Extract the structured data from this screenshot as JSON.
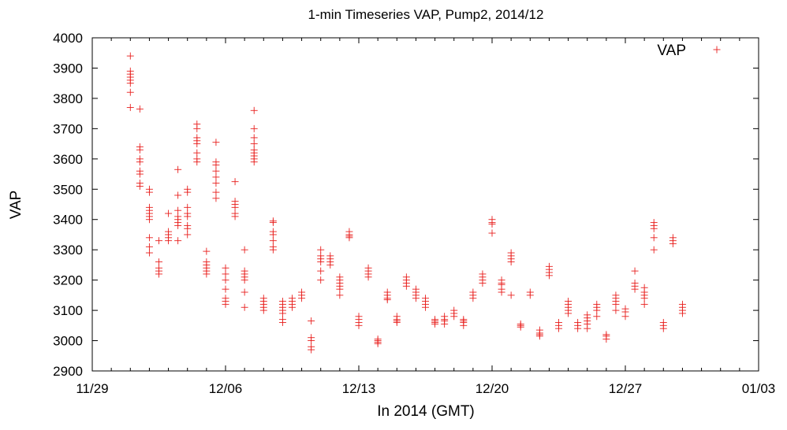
{
  "chart_data": {
    "type": "scatter",
    "title": "1-min Timeseries VAP, Pump2, 2014/12",
    "xlabel": "In 2014 (GMT)",
    "ylabel": "VAP",
    "x_tick_labels": [
      "11/29",
      "12/06",
      "12/13",
      "12/20",
      "12/27",
      "01/03"
    ],
    "y_ticks": [
      2900,
      3000,
      3100,
      3200,
      3300,
      3400,
      3500,
      3600,
      3700,
      3800,
      3900,
      4000
    ],
    "ylim": [
      2900,
      4000
    ],
    "xlim": [
      "2014-11-29",
      "2015-01-03"
    ],
    "grid": false,
    "legend_position": "top-right",
    "marker": "+",
    "color": "#e8201e",
    "series": [
      {
        "name": "VAP",
        "groups": [
          {
            "date": "2014-12-01",
            "values": [
              3770,
              3820,
              3850,
              3860,
              3870,
              3880,
              3890,
              3940
            ]
          },
          {
            "date": "2014-12-01.5",
            "values": [
              3510,
              3520,
              3550,
              3560,
              3590,
              3600,
              3630,
              3640,
              3765
            ]
          },
          {
            "date": "2014-12-02",
            "values": [
              3290,
              3310,
              3340,
              3400,
              3410,
              3420,
              3430,
              3440,
              3490,
              3500
            ]
          },
          {
            "date": "2014-12-02.5",
            "values": [
              3220,
              3230,
              3240,
              3260,
              3330
            ]
          },
          {
            "date": "2014-12-03",
            "values": [
              3330,
              3340,
              3350,
              3360,
              3420
            ]
          },
          {
            "date": "2014-12-03.5",
            "values": [
              3330,
              3380,
              3390,
              3400,
              3410,
              3430,
              3480,
              3565
            ]
          },
          {
            "date": "2014-12-04",
            "values": [
              3350,
              3370,
              3380,
              3410,
              3420,
              3440,
              3490,
              3500
            ]
          },
          {
            "date": "2014-12-04.5",
            "values": [
              3590,
              3600,
              3620,
              3650,
              3660,
              3670,
              3700,
              3715
            ]
          },
          {
            "date": "2014-12-05",
            "values": [
              3220,
              3230,
              3240,
              3250,
              3260,
              3295
            ]
          },
          {
            "date": "2014-12-05.5",
            "values": [
              3470,
              3490,
              3520,
              3540,
              3560,
              3580,
              3590,
              3655
            ]
          },
          {
            "date": "2014-12-06",
            "values": [
              3120,
              3130,
              3140,
              3170,
              3200,
              3220,
              3240
            ]
          },
          {
            "date": "2014-12-06.5",
            "values": [
              3410,
              3420,
              3440,
              3450,
              3460,
              3525
            ]
          },
          {
            "date": "2014-12-07",
            "values": [
              3110,
              3160,
              3200,
              3210,
              3220,
              3230,
              3300
            ]
          },
          {
            "date": "2014-12-07.5",
            "values": [
              3590,
              3600,
              3610,
              3620,
              3630,
              3650,
              3670,
              3700,
              3760
            ]
          },
          {
            "date": "2014-12-08",
            "values": [
              3100,
              3110,
              3120,
              3130,
              3140
            ]
          },
          {
            "date": "2014-12-08.5",
            "values": [
              3300,
              3310,
              3330,
              3350,
              3360,
              3390,
              3395
            ]
          },
          {
            "date": "2014-12-09",
            "values": [
              3060,
              3070,
              3090,
              3100,
              3110,
              3120,
              3130
            ]
          },
          {
            "date": "2014-12-09.5",
            "values": [
              3110,
              3120,
              3130,
              3140
            ]
          },
          {
            "date": "2014-12-10",
            "values": [
              3140,
              3150,
              3160
            ]
          },
          {
            "date": "2014-12-10.5",
            "values": [
              2970,
              2980,
              3000,
              3010,
              3065
            ]
          },
          {
            "date": "2014-12-11",
            "values": [
              3200,
              3230,
              3260,
              3270,
              3280,
              3300
            ]
          },
          {
            "date": "2014-12-11.5",
            "values": [
              3250,
              3260,
              3270,
              3280
            ]
          },
          {
            "date": "2014-12-12",
            "values": [
              3150,
              3170,
              3180,
              3190,
              3200,
              3210
            ]
          },
          {
            "date": "2014-12-12.5",
            "values": [
              3340,
              3345,
              3350,
              3360
            ]
          },
          {
            "date": "2014-12-13",
            "values": [
              3050,
              3060,
              3070,
              3080
            ]
          },
          {
            "date": "2014-12-13.5",
            "values": [
              3210,
              3220,
              3230,
              3240
            ]
          },
          {
            "date": "2014-12-14",
            "values": [
              2990,
              2995,
              3000,
              3005
            ]
          },
          {
            "date": "2014-12-14.5",
            "values": [
              3135,
              3140,
              3150,
              3160
            ]
          },
          {
            "date": "2014-12-15",
            "values": [
              3060,
              3065,
              3070,
              3080
            ]
          },
          {
            "date": "2014-12-15.5",
            "values": [
              3180,
              3190,
              3200,
              3210
            ]
          },
          {
            "date": "2014-12-16",
            "values": [
              3140,
              3150,
              3160,
              3170
            ]
          },
          {
            "date": "2014-12-16.5",
            "values": [
              3110,
              3120,
              3130,
              3140
            ]
          },
          {
            "date": "2014-12-17",
            "values": [
              3055,
              3060,
              3065,
              3070
            ]
          },
          {
            "date": "2014-12-17.5",
            "values": [
              3055,
              3065,
              3070,
              3080
            ]
          },
          {
            "date": "2014-12-18",
            "values": [
              3080,
              3090,
              3100
            ]
          },
          {
            "date": "2014-12-18.5",
            "values": [
              3050,
              3060,
              3065,
              3070
            ]
          },
          {
            "date": "2014-12-19",
            "values": [
              3140,
              3150,
              3160
            ]
          },
          {
            "date": "2014-12-19.5",
            "values": [
              3190,
              3200,
              3210,
              3220
            ]
          },
          {
            "date": "2014-12-20",
            "values": [
              3355,
              3385,
              3390,
              3400
            ]
          },
          {
            "date": "2014-12-20.5",
            "values": [
              3160,
              3170,
              3185,
              3190,
              3200
            ]
          },
          {
            "date": "2014-12-21",
            "values": [
              3150,
              3260,
              3270,
              3280,
              3290
            ]
          },
          {
            "date": "2014-12-21.5",
            "values": [
              3045,
              3050,
              3055
            ]
          },
          {
            "date": "2014-12-22",
            "values": [
              3150,
              3160
            ]
          },
          {
            "date": "2014-12-22.5",
            "values": [
              3015,
              3020,
              3025,
              3035
            ]
          },
          {
            "date": "2014-12-23",
            "values": [
              3215,
              3225,
              3235,
              3245
            ]
          },
          {
            "date": "2014-12-23.5",
            "values": [
              3040,
              3050,
              3060
            ]
          },
          {
            "date": "2014-12-24",
            "values": [
              3090,
              3100,
              3110,
              3120,
              3130
            ]
          },
          {
            "date": "2014-12-24.5",
            "values": [
              3040,
              3050,
              3060
            ]
          },
          {
            "date": "2014-12-25",
            "values": [
              3040,
              3055,
              3065,
              3075,
              3085
            ]
          },
          {
            "date": "2014-12-25.5",
            "values": [
              3080,
              3100,
              3110,
              3120
            ]
          },
          {
            "date": "2014-12-26",
            "values": [
              3005,
              3015,
              3020
            ]
          },
          {
            "date": "2014-12-26.5",
            "values": [
              3100,
              3120,
              3130,
              3140,
              3150
            ]
          },
          {
            "date": "2014-12-27",
            "values": [
              3080,
              3095,
              3105
            ]
          },
          {
            "date": "2014-12-27.5",
            "values": [
              3170,
              3180,
              3190,
              3230
            ]
          },
          {
            "date": "2014-12-28",
            "values": [
              3120,
              3140,
              3150,
              3160,
              3175
            ]
          },
          {
            "date": "2014-12-28.5",
            "values": [
              3300,
              3340,
              3370,
              3380,
              3390
            ]
          },
          {
            "date": "2014-12-29",
            "values": [
              3040,
              3050,
              3060
            ]
          },
          {
            "date": "2014-12-29.5",
            "values": [
              3320,
              3330,
              3340
            ]
          },
          {
            "date": "2014-12-30",
            "values": [
              3090,
              3100,
              3110,
              3120
            ]
          }
        ]
      }
    ]
  }
}
